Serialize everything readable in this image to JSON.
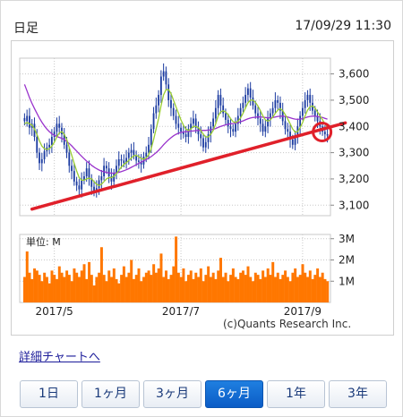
{
  "header": {
    "title": "日足",
    "timestamp": "17/09/29 11:30"
  },
  "chart_data": {
    "type": "candlestick",
    "price_axis": {
      "ticks": [
        3100,
        3200,
        3300,
        3400,
        3500,
        3600
      ],
      "tick_labels": [
        "3,100",
        "3,200",
        "3,300",
        "3,400",
        "3,500",
        "3,600"
      ],
      "range": [
        3060,
        3660
      ]
    },
    "volume_axis": {
      "unit_label": "単位: M",
      "ticks": [
        1,
        2,
        3
      ],
      "tick_labels": [
        "1M",
        "2M",
        "3M"
      ],
      "range": [
        0,
        3.2
      ]
    },
    "x_tick_labels": [
      "2017/5",
      "2017/7",
      "2017/9"
    ],
    "x_tick_index": [
      12,
      63,
      112
    ],
    "closes": [
      3420,
      3440,
      3395,
      3410,
      3360,
      3300,
      3260,
      3275,
      3305,
      3320,
      3330,
      3360,
      3380,
      3410,
      3395,
      3370,
      3330,
      3300,
      3250,
      3230,
      3190,
      3175,
      3160,
      3195,
      3210,
      3240,
      3200,
      3170,
      3150,
      3165,
      3195,
      3210,
      3250,
      3240,
      3210,
      3190,
      3220,
      3250,
      3275,
      3270,
      3260,
      3280,
      3300,
      3310,
      3290,
      3270,
      3265,
      3255,
      3285,
      3300,
      3330,
      3390,
      3450,
      3480,
      3520,
      3590,
      3610,
      3560,
      3500,
      3470,
      3440,
      3410,
      3395,
      3380,
      3370,
      3360,
      3390,
      3410,
      3430,
      3395,
      3370,
      3355,
      3320,
      3340,
      3370,
      3400,
      3430,
      3470,
      3520,
      3480,
      3450,
      3425,
      3400,
      3390,
      3380,
      3410,
      3440,
      3470,
      3490,
      3520,
      3545,
      3510,
      3480,
      3450,
      3430,
      3410,
      3380,
      3400,
      3430,
      3450,
      3470,
      3500,
      3490,
      3460,
      3420,
      3390,
      3380,
      3350,
      3330,
      3360,
      3400,
      3440,
      3470,
      3500,
      3520,
      3490,
      3460,
      3440,
      3420,
      3400,
      3380,
      3370,
      3365
    ],
    "ma_short": [
      3410,
      3415,
      3410,
      3405,
      3390,
      3370,
      3345,
      3325,
      3315,
      3312,
      3315,
      3325,
      3340,
      3360,
      3375,
      3380,
      3370,
      3350,
      3320,
      3290,
      3260,
      3230,
      3205,
      3195,
      3195,
      3200,
      3203,
      3200,
      3190,
      3180,
      3175,
      3180,
      3190,
      3200,
      3205,
      3205,
      3210,
      3220,
      3232,
      3245,
      3255,
      3262,
      3270,
      3280,
      3288,
      3290,
      3285,
      3278,
      3275,
      3280,
      3292,
      3315,
      3350,
      3390,
      3430,
      3480,
      3520,
      3540,
      3540,
      3525,
      3500,
      3475,
      3450,
      3425,
      3405,
      3390,
      3385,
      3390,
      3400,
      3400,
      3395,
      3385,
      3370,
      3360,
      3360,
      3370,
      3385,
      3410,
      3440,
      3455,
      3460,
      3455,
      3445,
      3430,
      3418,
      3415,
      3420,
      3432,
      3450,
      3470,
      3490,
      3500,
      3500,
      3492,
      3478,
      3460,
      3440,
      3425,
      3420,
      3425,
      3435,
      3450,
      3462,
      3468,
      3460,
      3445,
      3428,
      3410,
      3390,
      3378,
      3380,
      3395,
      3415,
      3440,
      3462,
      3475,
      3478,
      3470,
      3455,
      3440,
      3425,
      3410,
      3398
    ],
    "ma_long": [
      3560,
      3535,
      3510,
      3488,
      3468,
      3450,
      3432,
      3416,
      3402,
      3390,
      3380,
      3372,
      3366,
      3362,
      3358,
      3355,
      3350,
      3343,
      3335,
      3326,
      3316,
      3306,
      3296,
      3286,
      3277,
      3268,
      3260,
      3252,
      3245,
      3239,
      3234,
      3230,
      3227,
      3225,
      3223,
      3222,
      3222,
      3223,
      3225,
      3228,
      3231,
      3235,
      3239,
      3244,
      3249,
      3254,
      3259,
      3264,
      3269,
      3274,
      3279,
      3285,
      3292,
      3300,
      3309,
      3319,
      3330,
      3340,
      3349,
      3357,
      3364,
      3370,
      3374,
      3377,
      3379,
      3380,
      3381,
      3382,
      3383,
      3384,
      3385,
      3385,
      3385,
      3385,
      3386,
      3387,
      3389,
      3392,
      3396,
      3400,
      3403,
      3406,
      3408,
      3410,
      3411,
      3413,
      3415,
      3418,
      3421,
      3425,
      3429,
      3432,
      3434,
      3435,
      3436,
      3436,
      3435,
      3434,
      3433,
      3433,
      3434,
      3436,
      3438,
      3439,
      3439,
      3438,
      3436,
      3433,
      3430,
      3428,
      3427,
      3428,
      3430,
      3433,
      3436,
      3438,
      3439,
      3439,
      3438,
      3436,
      3434,
      3431,
      3428
    ],
    "volume": [
      1.2,
      2.4,
      1.4,
      1.1,
      1.6,
      1.5,
      1.3,
      1.0,
      1.4,
      1.2,
      0.9,
      1.5,
      1.3,
      1.1,
      1.7,
      1.4,
      1.2,
      1.5,
      1.3,
      1.0,
      1.6,
      1.4,
      1.2,
      1.5,
      1.8,
      1.1,
      1.9,
      1.3,
      0.8,
      1.2,
      1.4,
      2.6,
      1.3,
      1.0,
      1.5,
      1.2,
      1.6,
      1.1,
      0.9,
      1.3,
      1.7,
      1.2,
      1.4,
      2.0,
      1.1,
      1.3,
      1.6,
      1.0,
      1.2,
      1.4,
      1.5,
      1.3,
      1.8,
      1.4,
      1.6,
      2.3,
      1.2,
      1.5,
      1.1,
      1.3,
      1.7,
      3.1,
      1.4,
      1.2,
      1.6,
      1.0,
      1.3,
      1.5,
      1.1,
      1.4,
      1.2,
      1.6,
      1.0,
      1.3,
      1.7,
      1.2,
      1.4,
      1.1,
      1.5,
      2.1,
      1.2,
      1.4,
      1.0,
      1.3,
      1.6,
      1.2,
      1.1,
      1.4,
      1.5,
      1.3,
      1.7,
      1.2,
      1.0,
      1.4,
      1.3,
      1.1,
      1.5,
      1.2,
      1.6,
      1.3,
      1.9,
      1.2,
      1.4,
      1.1,
      1.3,
      1.5,
      1.2,
      1.0,
      1.4,
      1.6,
      1.2,
      1.3,
      1.8,
      1.4,
      1.2,
      1.5,
      1.1,
      1.3,
      1.6,
      1.2,
      1.4,
      1.1,
      1.0
    ],
    "trendline": {
      "from": [
        3,
        3085
      ],
      "to": [
        122,
        3400
      ]
    },
    "watermark": "(c)Quants Research Inc.",
    "colors": {
      "candle": "#1a3aa0",
      "ma_short": "#9acd32",
      "ma_long": "#9933cc",
      "volume": "#ff7700",
      "trend": "#e0202a",
      "highlight": "#e0202a",
      "grid": "#c8c8c8"
    }
  },
  "detail_link": "詳細チャートへ",
  "periods": [
    {
      "label": "1日",
      "active": false
    },
    {
      "label": "1ヶ月",
      "active": false
    },
    {
      "label": "3ヶ月",
      "active": false
    },
    {
      "label": "6ヶ月",
      "active": true
    },
    {
      "label": "1年",
      "active": false
    },
    {
      "label": "3年",
      "active": false
    }
  ]
}
